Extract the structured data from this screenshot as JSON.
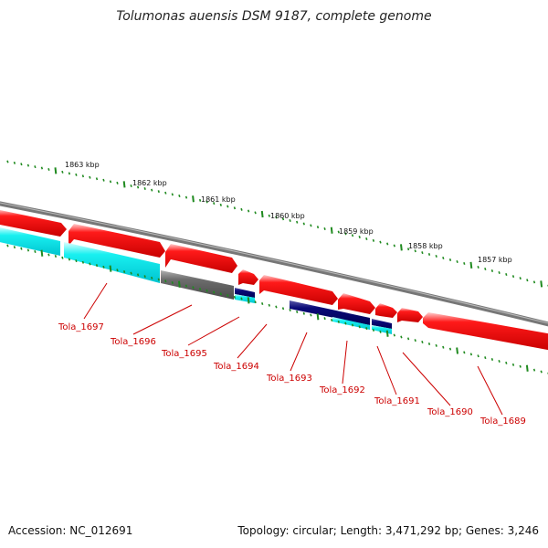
{
  "title": "Tolumonas auensis DSM 9187, complete genome",
  "accession_text": "Accession: NC_012691",
  "summary_text": "Topology: circular; Length: 3,471,292 bp; Genes: 3,246",
  "colors": {
    "backbone": "#808080",
    "forward_gene": "#ff0000",
    "reverse_gene": "#00ffff",
    "rna_gene": "#000080",
    "other_gene": "#555555",
    "tick": "#1f8a1f",
    "tick_label": "#111111",
    "gene_label": "#cc0000"
  },
  "scale_labels": [
    "1863 kbp",
    "1862 kbp",
    "1861 kbp",
    "1860 kbp",
    "1859 kbp",
    "1858 kbp",
    "1857 kbp"
  ],
  "gene_labels": [
    "Tola_1697",
    "Tola_1696",
    "Tola_1695",
    "Tola_1694",
    "Tola_1693",
    "Tola_1692",
    "Tola_1691",
    "Tola_1690",
    "Tola_1689"
  ]
}
